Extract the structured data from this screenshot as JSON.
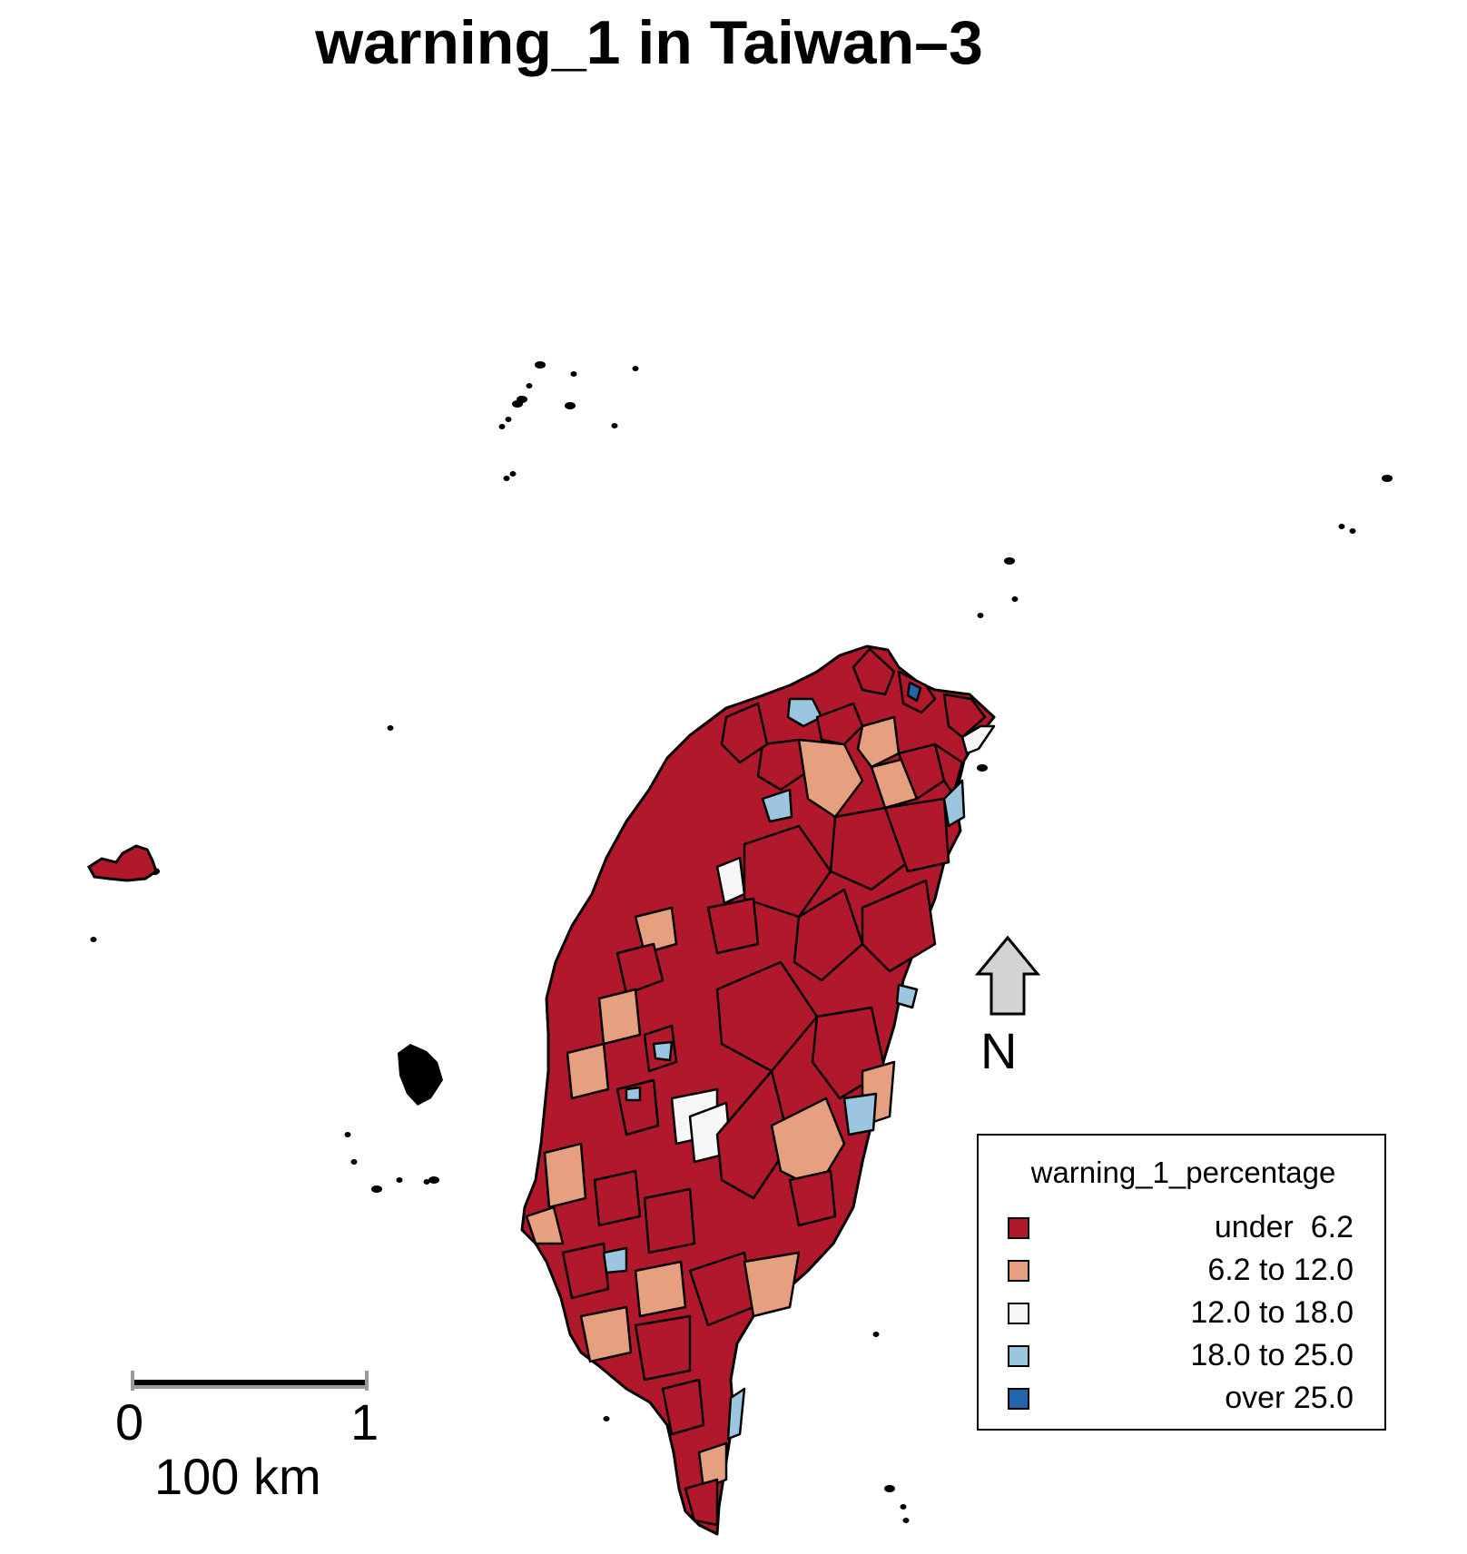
{
  "title": "warning_1 in Taiwan–3",
  "legend": {
    "title": "warning_1_percentage",
    "items": [
      {
        "label": "under  6.2",
        "color": "#B2182B"
      },
      {
        "label": "6.2 to 12.0",
        "color": "#E6A080"
      },
      {
        "label": "12.0 to 18.0",
        "color": "#F7F7F7"
      },
      {
        "label": "18.0 to 25.0",
        "color": "#9CC6DF"
      },
      {
        "label": "over 25.0",
        "color": "#2166AC"
      }
    ]
  },
  "north_arrow": {
    "label": "N",
    "fill": "#D3D3D3"
  },
  "scale_bar": {
    "start_label": "0",
    "end_label": "1",
    "unit_label": "100 km"
  },
  "map": {
    "region": "Taiwan",
    "dominant_class": "under  6.2",
    "border_color": "#000000"
  }
}
